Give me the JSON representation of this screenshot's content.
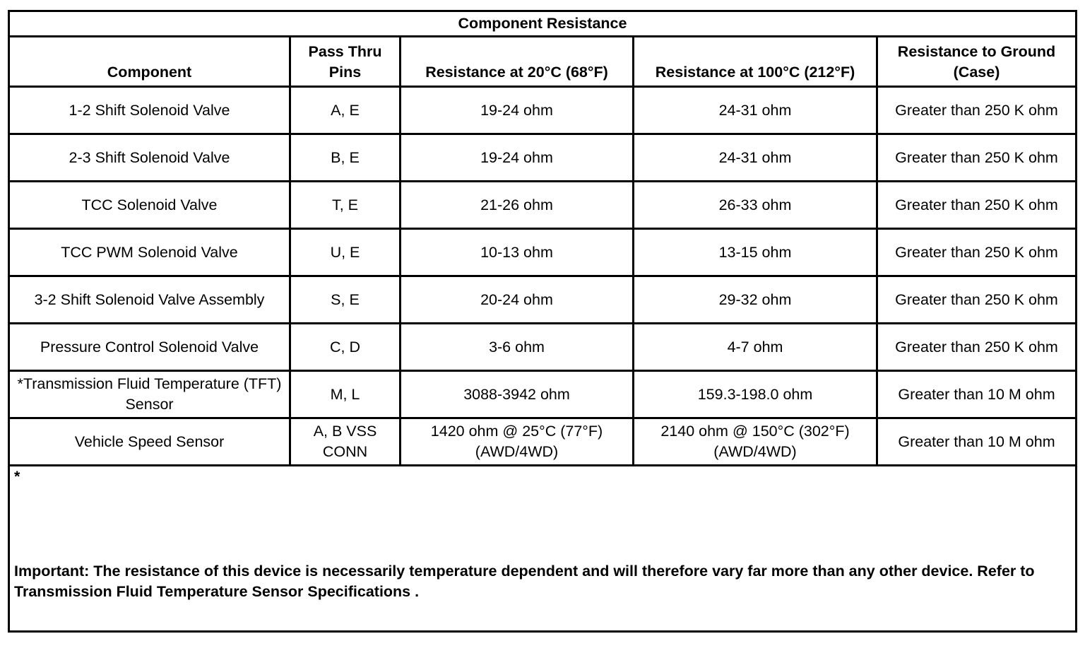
{
  "title": "Component Resistance",
  "columns": [
    "Component",
    "Pass Thru Pins",
    "Resistance at 20°C (68°F)",
    "Resistance at 100°C (212°F)",
    "Resistance to Ground (Case)"
  ],
  "rows": [
    [
      "1-2 Shift Solenoid Valve",
      "A, E",
      "19-24 ohm",
      "24-31 ohm",
      "Greater than 250 K ohm"
    ],
    [
      "2-3 Shift Solenoid Valve",
      "B, E",
      "19-24 ohm",
      "24-31 ohm",
      "Greater than 250 K ohm"
    ],
    [
      "TCC Solenoid Valve",
      "T, E",
      "21-26 ohm",
      "26-33 ohm",
      "Greater than 250 K ohm"
    ],
    [
      "TCC PWM Solenoid Valve",
      "U, E",
      "10-13 ohm",
      "13-15 ohm",
      "Greater than 250 K ohm"
    ],
    [
      "3-2 Shift Solenoid Valve Assembly",
      "S, E",
      "20-24 ohm",
      "29-32 ohm",
      "Greater than 250 K ohm"
    ],
    [
      "Pressure Control Solenoid Valve",
      "C, D",
      "3-6 ohm",
      "4-7 ohm",
      "Greater than 250 K ohm"
    ],
    [
      "*Transmission Fluid Temperature (TFT) Sensor",
      "M, L",
      "3088-3942 ohm",
      "159.3-198.0 ohm",
      "Greater than 10 M ohm"
    ],
    [
      "Vehicle Speed Sensor",
      "A, B VSS CONN",
      "1420 ohm @ 25°C (77°F) (AWD/4WD)",
      "2140 ohm @ 150°C (302°F) (AWD/4WD)",
      "Greater than 10 M ohm"
    ]
  ],
  "footnote": {
    "marker": "*",
    "text": "Important: The resistance of this device is necessarily temperature dependent and will therefore vary far more than any other device. Refer to Transmission Fluid Temperature Sensor Specifications ."
  }
}
